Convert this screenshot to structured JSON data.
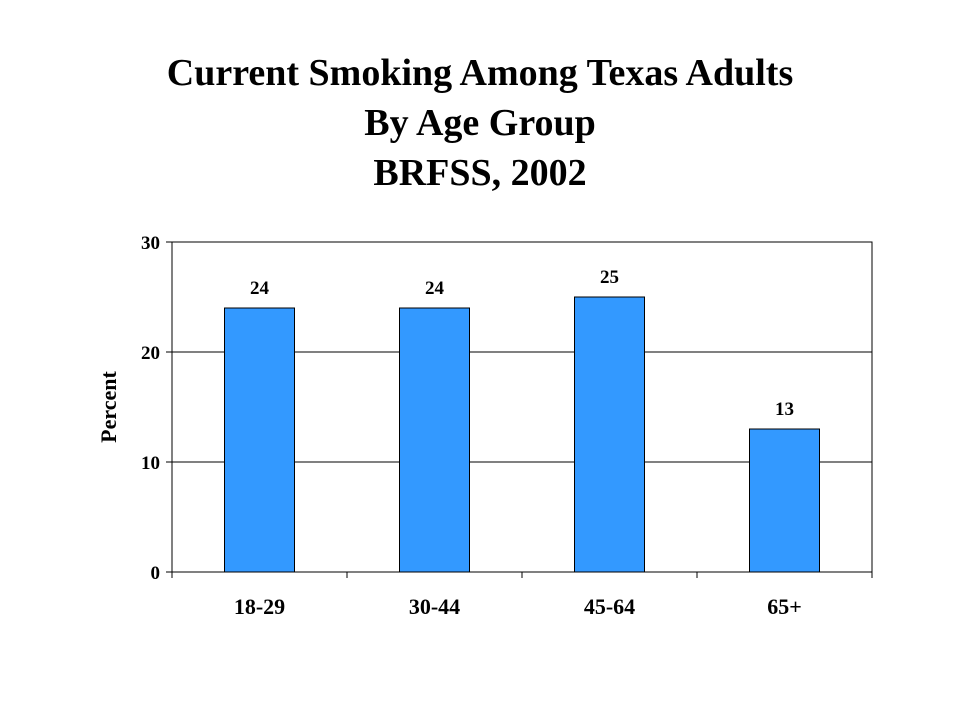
{
  "title_lines": [
    "Current Smoking Among Texas Adults",
    "By Age Group",
    "BRFSS, 2002"
  ],
  "chart_data": {
    "type": "bar",
    "title": "Current Smoking Among Texas Adults By Age Group BRFSS, 2002",
    "categories": [
      "18-29",
      "30-44",
      "45-64",
      "65+"
    ],
    "values": [
      24,
      24,
      25,
      13
    ],
    "data_labels": [
      "24",
      "24",
      "25",
      "13"
    ],
    "xlabel": "",
    "ylabel": "Percent",
    "ylim": [
      0,
      30
    ],
    "yticks": [
      0,
      10,
      20,
      30
    ],
    "ytick_labels": [
      "0",
      "10",
      "20",
      "30"
    ],
    "grid": true,
    "legend": false,
    "bar_color": "#3399ff"
  }
}
